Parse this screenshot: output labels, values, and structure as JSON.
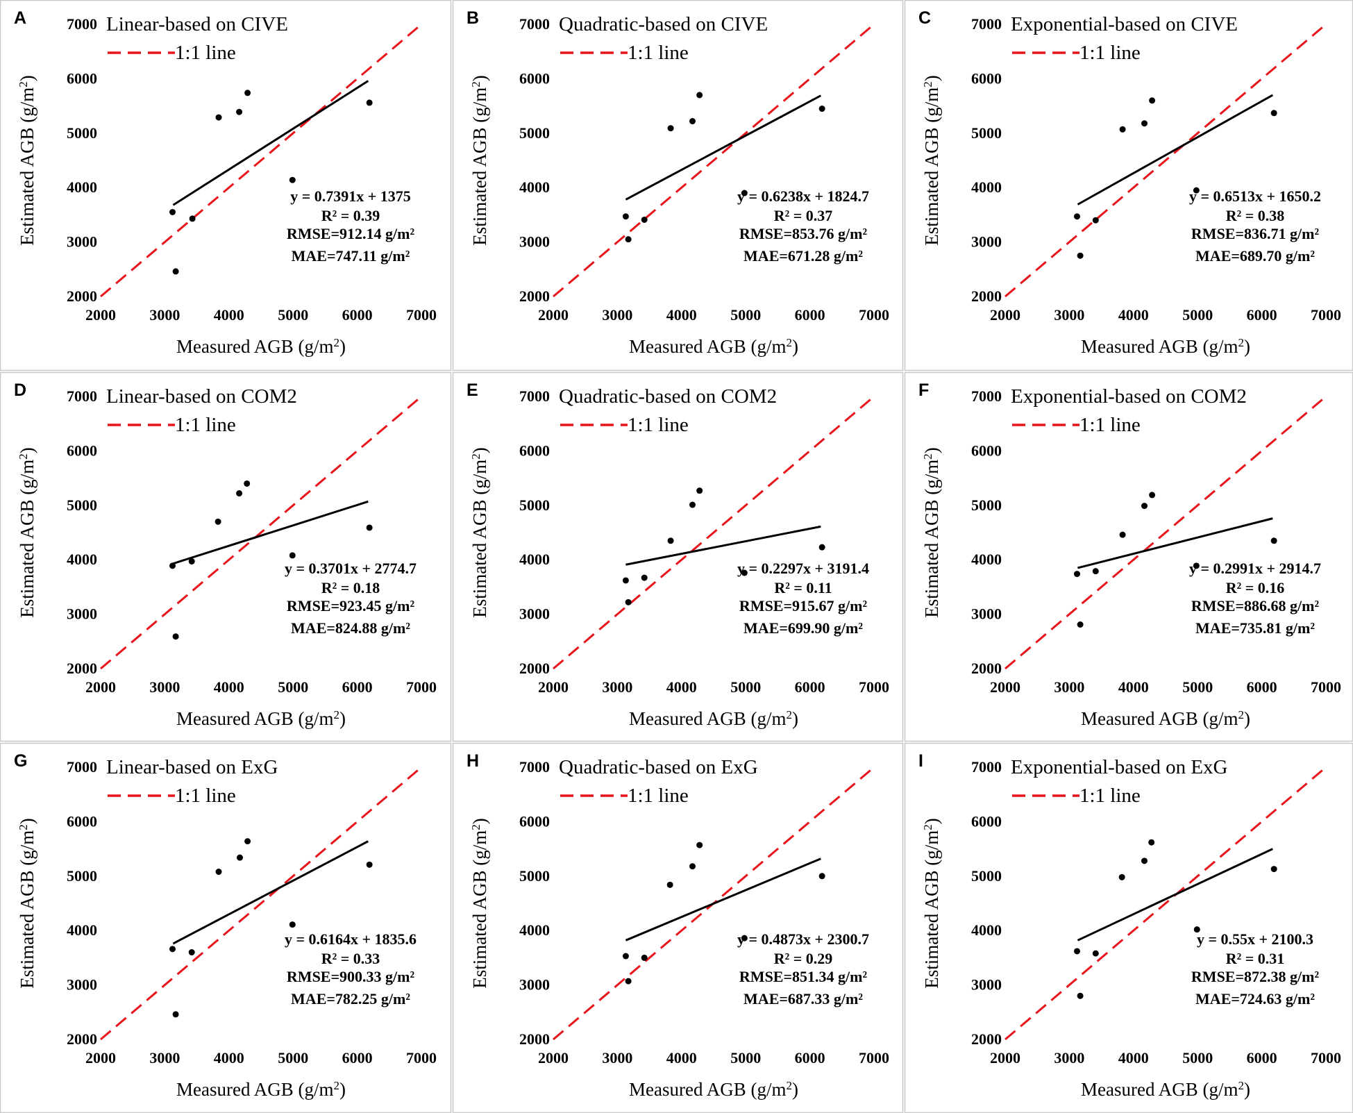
{
  "figure": {
    "xlabel_main": "Measured AGB (g/m",
    "ylabel_main": "Estimated AGB (g/m",
    "unit_power": "2",
    "unit_close": ")",
    "legend_label": "1:1 line",
    "colors": {
      "one_to_one": "#e8141c",
      "regression": "#000000",
      "points": "#000000",
      "border": "#c8c8c8"
    }
  },
  "chart_data": [
    {
      "panel": "A",
      "type": "scatter",
      "title": "Linear-based on CIVE",
      "xlim": [
        2000,
        7000
      ],
      "ylim": [
        2000,
        7000
      ],
      "xticks": [
        "2000",
        "3000",
        "4000",
        "5000",
        "6000",
        "7000"
      ],
      "yticks": [
        "2000",
        "3000",
        "4000",
        "5000",
        "6000",
        "7000"
      ],
      "points": [
        [
          3120,
          3550
        ],
        [
          3170,
          2460
        ],
        [
          3430,
          3430
        ],
        [
          3840,
          5290
        ],
        [
          4160,
          5390
        ],
        [
          4290,
          5740
        ],
        [
          4990,
          4140
        ],
        [
          6190,
          5560
        ]
      ],
      "fit_x": [
        3130,
        6170
      ],
      "fit_y": [
        3680,
        5960
      ],
      "equation": "y = 0.7391x + 1375",
      "r2": "R² = 0.39",
      "rmse": "RMSE=912.14 g/m²",
      "mae": "MAE=747.11 g/m²"
    },
    {
      "panel": "B",
      "type": "scatter",
      "title": "Quadratic-based on CIVE",
      "xlim": [
        2000,
        7000
      ],
      "ylim": [
        2000,
        7000
      ],
      "xticks": [
        "2000",
        "3000",
        "4000",
        "5000",
        "6000",
        "7000"
      ],
      "yticks": [
        "2000",
        "3000",
        "4000",
        "5000",
        "6000",
        "7000"
      ],
      "points": [
        [
          3130,
          3470
        ],
        [
          3170,
          3050
        ],
        [
          3420,
          3410
        ],
        [
          3830,
          5090
        ],
        [
          4170,
          5220
        ],
        [
          4280,
          5700
        ],
        [
          4980,
          3900
        ],
        [
          6190,
          5450
        ]
      ],
      "fit_x": [
        3130,
        6170
      ],
      "fit_y": [
        3780,
        5690
      ],
      "equation": "y = 0.6238x + 1824.7",
      "r2": "R² = 0.37",
      "rmse": "RMSE=853.76 g/m²",
      "mae": "MAE=671.28 g/m²"
    },
    {
      "panel": "C",
      "type": "scatter",
      "title": "Exponential-based on CIVE",
      "xlim": [
        2000,
        7000
      ],
      "ylim": [
        2000,
        7000
      ],
      "xticks": [
        "2000",
        "3000",
        "4000",
        "5000",
        "6000",
        "7000"
      ],
      "yticks": [
        "2000",
        "3000",
        "4000",
        "5000",
        "6000",
        "7000"
      ],
      "points": [
        [
          3120,
          3470
        ],
        [
          3170,
          2750
        ],
        [
          3410,
          3400
        ],
        [
          3830,
          5070
        ],
        [
          4170,
          5180
        ],
        [
          4290,
          5600
        ],
        [
          4980,
          3950
        ],
        [
          6190,
          5370
        ]
      ],
      "fit_x": [
        3130,
        6170
      ],
      "fit_y": [
        3690,
        5700
      ],
      "equation": "y = 0.6513x + 1650.2",
      "r2": "R² = 0.38",
      "rmse": "RMSE=836.71 g/m²",
      "mae": "MAE=689.70 g/m²"
    },
    {
      "panel": "D",
      "type": "scatter",
      "title": "Linear-based on COM2",
      "xlim": [
        2000,
        7000
      ],
      "ylim": [
        2000,
        7000
      ],
      "xticks": [
        "2000",
        "3000",
        "4000",
        "5000",
        "6000",
        "7000"
      ],
      "yticks": [
        "2000",
        "3000",
        "4000",
        "5000",
        "6000",
        "7000"
      ],
      "points": [
        [
          3120,
          3890
        ],
        [
          3170,
          2590
        ],
        [
          3420,
          3970
        ],
        [
          3830,
          4700
        ],
        [
          4160,
          5220
        ],
        [
          4280,
          5400
        ],
        [
          4990,
          4080
        ],
        [
          6190,
          4590
        ]
      ],
      "fit_x": [
        3130,
        6170
      ],
      "fit_y": [
        3930,
        5070
      ],
      "equation": "y = 0.3701x + 2774.7",
      "r2": "R² = 0.18",
      "rmse": "RMSE=923.45 g/m²",
      "mae": "MAE=824.88 g/m²"
    },
    {
      "panel": "E",
      "type": "scatter",
      "title": "Quadratic-based on COM2",
      "xlim": [
        2000,
        7000
      ],
      "ylim": [
        2000,
        7000
      ],
      "xticks": [
        "2000",
        "3000",
        "4000",
        "5000",
        "6000",
        "7000"
      ],
      "yticks": [
        "2000",
        "3000",
        "4000",
        "5000",
        "6000",
        "7000"
      ],
      "points": [
        [
          3130,
          3620
        ],
        [
          3170,
          3220
        ],
        [
          3420,
          3670
        ],
        [
          3830,
          4350
        ],
        [
          4170,
          5010
        ],
        [
          4280,
          5270
        ],
        [
          4980,
          3760
        ],
        [
          6190,
          4230
        ]
      ],
      "fit_x": [
        3130,
        6170
      ],
      "fit_y": [
        3910,
        4610
      ],
      "equation": "y = 0.2297x + 3191.4",
      "r2": "R² = 0.11",
      "rmse": "RMSE=915.67 g/m²",
      "mae": "MAE=699.90 g/m²"
    },
    {
      "panel": "F",
      "type": "scatter",
      "title": "Exponential-based on COM2",
      "xlim": [
        2000,
        7000
      ],
      "ylim": [
        2000,
        7000
      ],
      "xticks": [
        "2000",
        "3000",
        "4000",
        "5000",
        "6000",
        "7000"
      ],
      "yticks": [
        "2000",
        "3000",
        "4000",
        "5000",
        "6000",
        "7000"
      ],
      "points": [
        [
          3120,
          3740
        ],
        [
          3170,
          2810
        ],
        [
          3410,
          3790
        ],
        [
          3830,
          4460
        ],
        [
          4170,
          4990
        ],
        [
          4290,
          5190
        ],
        [
          4980,
          3890
        ],
        [
          6190,
          4350
        ]
      ],
      "fit_x": [
        3130,
        6170
      ],
      "fit_y": [
        3850,
        4760
      ],
      "equation": "y = 0.2991x + 2914.7",
      "r2": "R² = 0.16",
      "rmse": "RMSE=886.68 g/m²",
      "mae": "MAE=735.81 g/m²"
    },
    {
      "panel": "G",
      "type": "scatter",
      "title": "Linear-based on ExG",
      "xlim": [
        2000,
        7000
      ],
      "ylim": [
        2000,
        7000
      ],
      "xticks": [
        "2000",
        "3000",
        "4000",
        "5000",
        "6000",
        "7000"
      ],
      "yticks": [
        "2000",
        "3000",
        "4000",
        "5000",
        "6000",
        "7000"
      ],
      "points": [
        [
          3120,
          3660
        ],
        [
          3170,
          2460
        ],
        [
          3420,
          3600
        ],
        [
          3840,
          5080
        ],
        [
          4170,
          5340
        ],
        [
          4290,
          5640
        ],
        [
          4990,
          4110
        ],
        [
          6190,
          5210
        ]
      ],
      "fit_x": [
        3130,
        6170
      ],
      "fit_y": [
        3760,
        5640
      ],
      "equation": "y = 0.6164x + 1835.6",
      "r2": "R² = 0.33",
      "rmse": "RMSE=900.33 g/m²",
      "mae": "MAE=782.25 g/m²"
    },
    {
      "panel": "H",
      "type": "scatter",
      "title": "Quadratic-based on ExG",
      "xlim": [
        2000,
        7000
      ],
      "ylim": [
        2000,
        7000
      ],
      "xticks": [
        "2000",
        "3000",
        "4000",
        "5000",
        "6000",
        "7000"
      ],
      "yticks": [
        "2000",
        "3000",
        "4000",
        "5000",
        "6000",
        "7000"
      ],
      "points": [
        [
          3130,
          3530
        ],
        [
          3170,
          3070
        ],
        [
          3420,
          3500
        ],
        [
          3820,
          4840
        ],
        [
          4170,
          5180
        ],
        [
          4280,
          5570
        ],
        [
          4980,
          3860
        ],
        [
          6190,
          5000
        ]
      ],
      "fit_x": [
        3130,
        6170
      ],
      "fit_y": [
        3820,
        5320
      ],
      "equation": "y = 0.4873x + 2300.7",
      "r2": "R² = 0.29",
      "rmse": "RMSE=851.34 g/m²",
      "mae": "MAE=687.33 g/m²"
    },
    {
      "panel": "I",
      "type": "scatter",
      "title": "Exponential-based on ExG",
      "xlim": [
        2000,
        7000
      ],
      "ylim": [
        2000,
        7000
      ],
      "xticks": [
        "2000",
        "3000",
        "4000",
        "5000",
        "6000",
        "7000"
      ],
      "yticks": [
        "2000",
        "3000",
        "4000",
        "5000",
        "6000",
        "7000"
      ],
      "points": [
        [
          3120,
          3620
        ],
        [
          3170,
          2800
        ],
        [
          3410,
          3580
        ],
        [
          3820,
          4980
        ],
        [
          4170,
          5280
        ],
        [
          4280,
          5620
        ],
        [
          4990,
          4020
        ],
        [
          6190,
          5130
        ]
      ],
      "fit_x": [
        3130,
        6170
      ],
      "fit_y": [
        3820,
        5500
      ],
      "equation": "y = 0.55x + 2100.3",
      "r2": "R² = 0.31",
      "rmse": "RMSE=872.38 g/m²",
      "mae": "MAE=724.63 g/m²"
    }
  ]
}
